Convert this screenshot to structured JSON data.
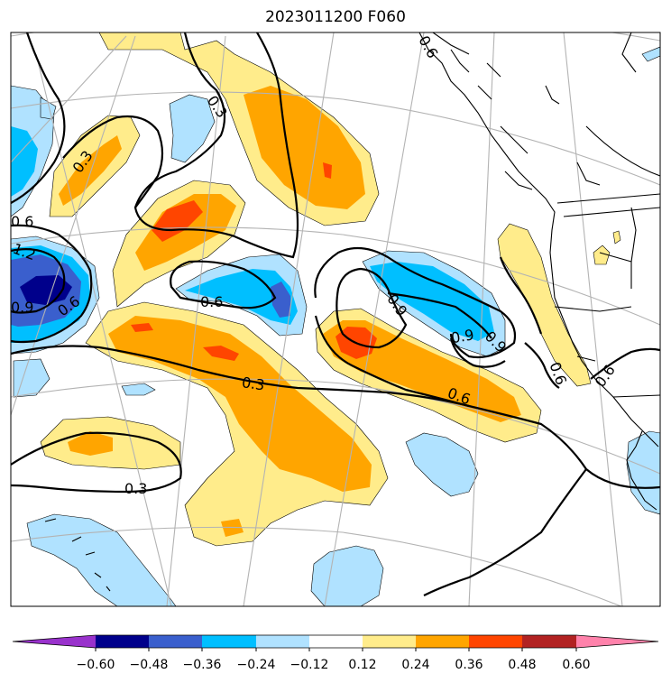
{
  "title": "2023011200 F060",
  "colorbar": {
    "ticks": [
      "−0.60",
      "−0.48",
      "−0.36",
      "−0.24",
      "−0.12",
      "0.12",
      "0.24",
      "0.36",
      "0.48",
      "0.60"
    ],
    "colors": [
      "#9932cc",
      "#00008b",
      "#3a5fcd",
      "#00bfff",
      "#b0e2ff",
      "#ffffff",
      "#ffec8b",
      "#ffa500",
      "#ff4500",
      "#b22222",
      "#ff82ab"
    ],
    "extend": "both"
  },
  "contour_labels": [
    "0.3",
    "0.3",
    "0.6",
    "1.2",
    "0.9",
    "0.6",
    "0.6",
    "0.9",
    "0.9",
    "0.9",
    "0.6",
    "0.6",
    "0.3",
    "0.6",
    "0.3",
    "0.6"
  ],
  "fill_colors": {
    "light_yellow": "#ffec8b",
    "orange": "#ffa500",
    "red_orange": "#ff4500",
    "light_blue": "#b0e2ff",
    "blue": "#00bfff",
    "medium_blue": "#3a5fcd",
    "dark_blue": "#00008b"
  }
}
